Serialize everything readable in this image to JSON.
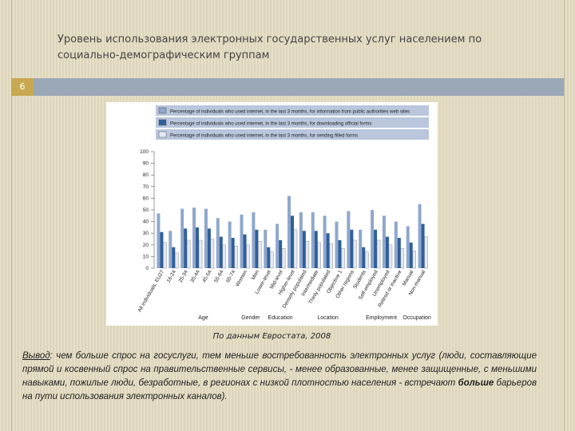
{
  "slide": {
    "title": "Уровень использования электронных государственных услуг населением по социально-демографическим группам",
    "number": "6",
    "caption": "По данным Евростата, 2008",
    "conclusion_label": "Вывод",
    "conclusion_before": ": чем больше спрос на госуслуги, тем меньше востребованность электронных услуг (люди, составляющие прямой и косвенный спрос на правительственные сервисы, - менее образованные, менее защищенные, с меньшими навыками, пожилые люди, безработные, в регионах с низкой плотностью населения - встречают",
    "conclusion_emphasis": "больше",
    "conclusion_after": "барьеров на пути использования электронных каналов)."
  },
  "chart_data": {
    "type": "bar",
    "categories": [
      "All individuals, EU27",
      "16-24",
      "25-34",
      "35-44",
      "45-54",
      "55-64",
      "65-74",
      "Women",
      "Men",
      "Lower-level",
      "Mid-level",
      "Higher-level",
      "Densely populated",
      "Intermediate",
      "Thinly populated",
      "Objective 1",
      "Other regions",
      "Students",
      "Self-employed",
      "Unemployed",
      "Retired or inactive",
      "Manual",
      "Non-manual"
    ],
    "groups": [
      "Age",
      "Gender",
      "Education",
      "Location",
      "Employment",
      "Occupation"
    ],
    "series": [
      {
        "name": "Percentage of individuals who used internet, in the last 3 months, for information from public authorities web sites",
        "color": "#8fa7cc",
        "values": [
          47,
          32,
          51,
          52,
          51,
          43,
          40,
          46,
          48,
          33,
          38,
          62,
          48,
          48,
          45,
          40,
          49,
          33,
          50,
          45,
          40,
          36,
          55
        ]
      },
      {
        "name": "Percentage of individuals who used internet, in the last 3 months, for downloading official forms",
        "color": "#2f5f9c",
        "values": [
          31,
          18,
          34,
          35,
          34,
          27,
          26,
          29,
          33,
          18,
          24,
          45,
          32,
          32,
          30,
          24,
          33,
          18,
          33,
          27,
          26,
          22,
          38
        ]
      },
      {
        "name": "Percentage of individuals who used internet, in the last 3 months, for sending filled forms",
        "color": "#e4e9f3",
        "values": [
          22,
          13,
          24,
          24,
          25,
          20,
          19,
          20,
          23,
          14,
          17,
          33,
          23,
          22,
          21,
          17,
          24,
          14,
          24,
          20,
          17,
          15,
          27
        ]
      }
    ],
    "ylim": [
      0,
      100
    ],
    "yticks": [
      0,
      10,
      20,
      30,
      40,
      50,
      60,
      70,
      80,
      90,
      100
    ],
    "grid": false
  }
}
